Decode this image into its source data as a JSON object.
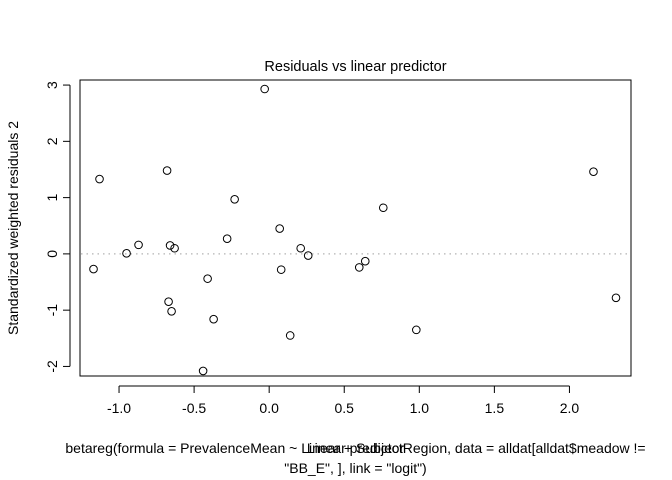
{
  "chart_data": {
    "type": "scatter",
    "title": "Residuals vs linear predictor",
    "xlabel": "Linear predictor",
    "ylabel": "Standardized weighted residuals 2",
    "subtitle_line1": "betareg(formula = PrevalenceMean ~ Linear + SubjectRegion, data = alldat[alldat$meadow !=",
    "subtitle_line2": "\"BB_E\", ], link = \"logit\")",
    "xlim": [
      -1.26,
      2.41
    ],
    "ylim": [
      -2.17,
      3.09
    ],
    "x_ticks": [
      -1.0,
      -0.5,
      0.0,
      0.5,
      1.0,
      1.5,
      2.0
    ],
    "x_tick_labels": [
      "-1.0",
      "-0.5",
      "0.0",
      "0.5",
      "1.0",
      "1.5",
      "2.0"
    ],
    "y_ticks": [
      -2,
      -1,
      0,
      1,
      2,
      3
    ],
    "y_tick_labels": [
      "-2",
      "-1",
      "0",
      "1",
      "2",
      "3"
    ],
    "reference_line": {
      "y": 0,
      "style": "dotted",
      "color": "#b3b3b3"
    },
    "grid": false,
    "legend": "none",
    "points": [
      {
        "x": -1.17,
        "y": -0.27
      },
      {
        "x": -1.13,
        "y": 1.33
      },
      {
        "x": -0.95,
        "y": 0.01
      },
      {
        "x": -0.87,
        "y": 0.16
      },
      {
        "x": -0.68,
        "y": 1.48
      },
      {
        "x": -0.67,
        "y": -0.85
      },
      {
        "x": -0.66,
        "y": 0.15
      },
      {
        "x": -0.65,
        "y": -1.02
      },
      {
        "x": -0.63,
        "y": 0.1
      },
      {
        "x": -0.44,
        "y": -2.08
      },
      {
        "x": -0.41,
        "y": -0.44
      },
      {
        "x": -0.37,
        "y": -1.16
      },
      {
        "x": -0.28,
        "y": 0.27
      },
      {
        "x": -0.23,
        "y": 0.97
      },
      {
        "x": -0.03,
        "y": 2.93
      },
      {
        "x": 0.07,
        "y": 0.45
      },
      {
        "x": 0.08,
        "y": -0.28
      },
      {
        "x": 0.14,
        "y": -1.45
      },
      {
        "x": 0.21,
        "y": 0.1
      },
      {
        "x": 0.26,
        "y": -0.03
      },
      {
        "x": 0.6,
        "y": -0.24
      },
      {
        "x": 0.64,
        "y": -0.13
      },
      {
        "x": 0.76,
        "y": 0.82
      },
      {
        "x": 0.98,
        "y": -1.35
      },
      {
        "x": 2.16,
        "y": 1.46
      },
      {
        "x": 2.31,
        "y": -0.78
      }
    ]
  }
}
